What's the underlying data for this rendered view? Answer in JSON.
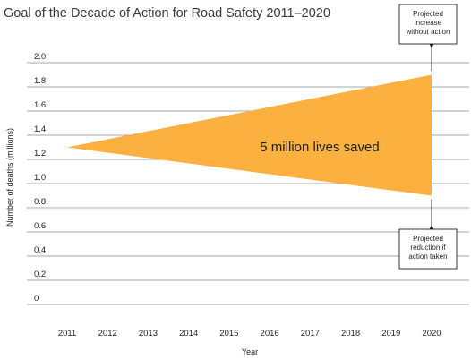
{
  "chart_data": {
    "type": "area",
    "title": "Goal of the Decade of Action for Road Safety 2011–2020",
    "xlabel": "Year",
    "ylabel": "Number of deaths (millions)",
    "x": [
      2011,
      2012,
      2013,
      2014,
      2015,
      2016,
      2017,
      2018,
      2019,
      2020
    ],
    "x_tick_labels": [
      "2011",
      "2012",
      "2013",
      "2014",
      "2015",
      "2016",
      "2017",
      "2018",
      "2019",
      "2020"
    ],
    "y_ticks": [
      0,
      0.2,
      0.4,
      0.6,
      0.8,
      1.0,
      1.2,
      1.4,
      1.6,
      1.8,
      2.0
    ],
    "y_tick_labels": [
      "0",
      "0.2",
      "0.4",
      "0.6",
      "0.8",
      "1.0",
      "1.2",
      "1.4",
      "1.6",
      "1.8",
      "2.0"
    ],
    "ylim": [
      0,
      2.0
    ],
    "xlim": [
      2011,
      2020
    ],
    "grid": true,
    "band": {
      "start": {
        "x": 2011,
        "y": 1.3
      },
      "upper_end": {
        "x": 2020,
        "y": 1.9
      },
      "lower_end": {
        "x": 2020,
        "y": 0.9
      },
      "color": "#fbb040",
      "label": "5 million lives saved"
    },
    "annotations": [
      {
        "lines": [
          "Projected",
          "increase",
          "without action"
        ],
        "x": 2020,
        "y": 1.9,
        "position": "top-right"
      },
      {
        "lines": [
          "Projected",
          "reduction if",
          "action taken"
        ],
        "x": 2020,
        "y": 0.9,
        "position": "bottom-right"
      }
    ]
  }
}
